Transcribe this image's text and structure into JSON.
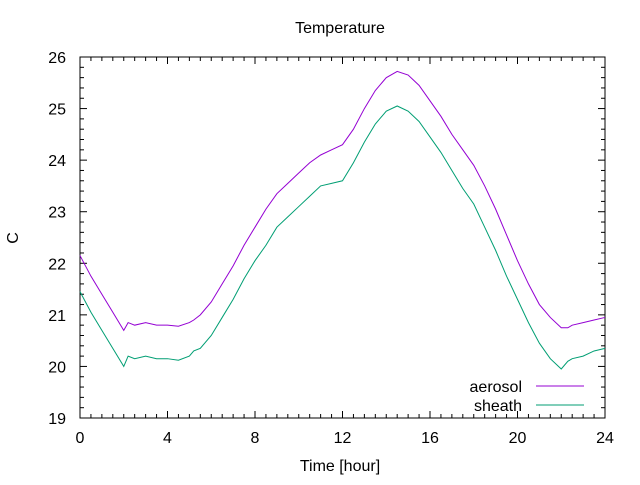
{
  "chart_data": {
    "type": "line",
    "title": "Temperature",
    "xlabel": "Time [hour]",
    "ylabel": "C",
    "xlim": [
      0,
      24
    ],
    "ylim": [
      19,
      26
    ],
    "x_ticks": [
      0,
      4,
      8,
      12,
      16,
      20,
      24
    ],
    "y_ticks": [
      19,
      20,
      21,
      22,
      23,
      24,
      25,
      26
    ],
    "grid": false,
    "legend_position": "bottom-right",
    "series": [
      {
        "name": "aerosol",
        "color": "#9400d3",
        "x": [
          0,
          0.5,
          1,
          1.5,
          2,
          2.2,
          2.5,
          3,
          3.5,
          4,
          4.5,
          5,
          5.2,
          5.5,
          6,
          6.5,
          7,
          7.5,
          8,
          8.5,
          9,
          9.5,
          10,
          10.5,
          11,
          11.5,
          12,
          12.5,
          13,
          13.5,
          14,
          14.5,
          15,
          15.5,
          16,
          16.5,
          17,
          17.5,
          18,
          18.5,
          19,
          19.5,
          20,
          20.5,
          21,
          21.5,
          22,
          22.3,
          22.5,
          23,
          23.5,
          24
        ],
        "values": [
          22.15,
          21.75,
          21.4,
          21.05,
          20.7,
          20.85,
          20.8,
          20.85,
          20.8,
          20.8,
          20.78,
          20.85,
          20.9,
          21.0,
          21.25,
          21.6,
          21.95,
          22.35,
          22.7,
          23.05,
          23.35,
          23.55,
          23.75,
          23.95,
          24.1,
          24.2,
          24.3,
          24.6,
          25.0,
          25.35,
          25.6,
          25.72,
          25.65,
          25.45,
          25.15,
          24.85,
          24.5,
          24.2,
          23.9,
          23.5,
          23.05,
          22.55,
          22.05,
          21.6,
          21.2,
          20.95,
          20.75,
          20.75,
          20.8,
          20.85,
          20.9,
          20.95
        ]
      },
      {
        "name": "sheath",
        "color": "#009e73",
        "x": [
          0,
          0.5,
          1,
          1.5,
          2,
          2.2,
          2.5,
          3,
          3.5,
          4,
          4.5,
          5,
          5.2,
          5.5,
          6,
          6.5,
          7,
          7.5,
          8,
          8.5,
          9,
          9.5,
          10,
          10.5,
          11,
          11.5,
          12,
          12.5,
          13,
          13.5,
          14,
          14.5,
          15,
          15.5,
          16,
          16.5,
          17,
          17.5,
          18,
          18.5,
          19,
          19.5,
          20,
          20.5,
          21,
          21.5,
          22,
          22.3,
          22.5,
          23,
          23.5,
          24
        ],
        "values": [
          21.45,
          21.05,
          20.7,
          20.35,
          20.0,
          20.2,
          20.15,
          20.2,
          20.15,
          20.15,
          20.12,
          20.2,
          20.3,
          20.35,
          20.6,
          20.95,
          21.3,
          21.7,
          22.05,
          22.35,
          22.7,
          22.9,
          23.1,
          23.3,
          23.5,
          23.55,
          23.6,
          23.95,
          24.35,
          24.7,
          24.95,
          25.05,
          24.95,
          24.75,
          24.45,
          24.15,
          23.8,
          23.45,
          23.15,
          22.7,
          22.25,
          21.75,
          21.3,
          20.85,
          20.45,
          20.15,
          19.95,
          20.1,
          20.15,
          20.2,
          20.3,
          20.35
        ]
      }
    ]
  }
}
